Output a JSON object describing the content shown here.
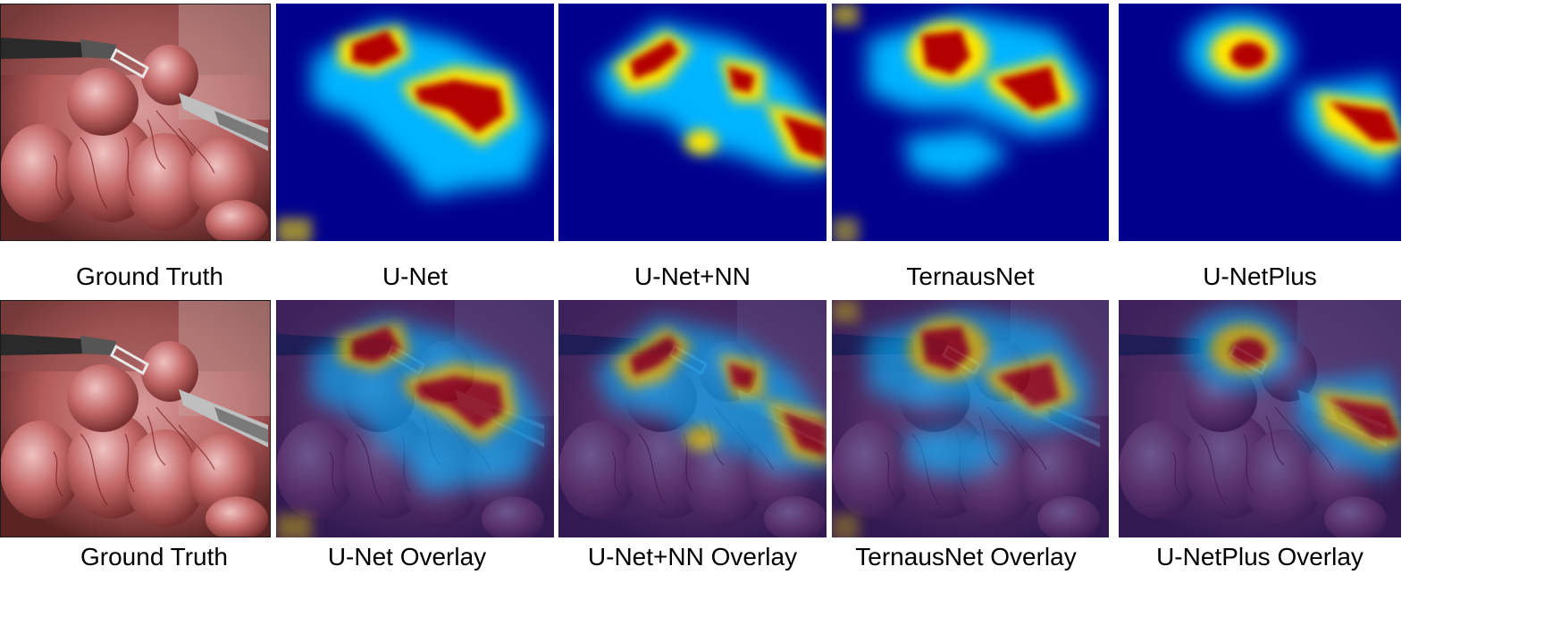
{
  "panels": {
    "row1": [
      {
        "label": "Ground Truth",
        "kind": "photo"
      },
      {
        "label": "U-Net",
        "kind": "heatmap"
      },
      {
        "label": "U-Net+NN",
        "kind": "heatmap"
      },
      {
        "label": "TernausNet",
        "kind": "heatmap"
      },
      {
        "label": "U-NetPlus",
        "kind": "heatmap"
      }
    ],
    "row2": [
      {
        "label": "Ground Truth",
        "kind": "photo"
      },
      {
        "label": "U-Net Overlay",
        "kind": "overlay"
      },
      {
        "label": "U-Net+NN Overlay",
        "kind": "overlay"
      },
      {
        "label": "TernausNet Overlay",
        "kind": "overlay"
      },
      {
        "label": "U-NetPlus Overlay",
        "kind": "overlay"
      }
    ]
  },
  "colors": {
    "heat_background": "#00008c",
    "heat_low": "#00b4ff",
    "heat_mid": "#ffe600",
    "heat_high": "#b40000",
    "tissue": "#b35a5a"
  }
}
